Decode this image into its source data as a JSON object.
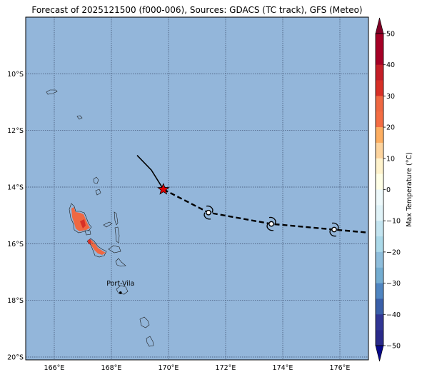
{
  "title": "Forecast of 2025121500 (f000-006), Sources: GDACS (TC track), GFS (Meteo)",
  "colors": {
    "ocean": "#93b6da",
    "grid": "#3a4a6a",
    "coast": "#1a1a1a",
    "hot": "#ef6842",
    "warmer": "#d73027",
    "track": "#000000",
    "current_marker": "#e00000"
  },
  "map": {
    "lon_range": [
      165,
      177
    ],
    "lat_range": [
      -20.1,
      -8.0
    ],
    "lon_ticks": [
      {
        "v": 166,
        "label": "166°E"
      },
      {
        "v": 168,
        "label": "168°E"
      },
      {
        "v": 170,
        "label": "170°E"
      },
      {
        "v": 172,
        "label": "172°E"
      },
      {
        "v": 174,
        "label": "174°E"
      },
      {
        "v": 176,
        "label": "176°E"
      }
    ],
    "lat_ticks": [
      {
        "v": -10,
        "label": "10°S"
      },
      {
        "v": -12,
        "label": "12°S"
      },
      {
        "v": -14,
        "label": "14°S"
      },
      {
        "v": -16,
        "label": "16°S"
      },
      {
        "v": -18,
        "label": "18°S"
      },
      {
        "v": -20,
        "label": "20°S"
      }
    ],
    "place_label": "Port-Vila",
    "place_point": {
      "lon": 168.32,
      "lat": -17.73
    }
  },
  "track": {
    "past": [
      [
        168.9,
        -12.88
      ],
      [
        169.4,
        -13.4
      ],
      [
        169.82,
        -14.08
      ]
    ],
    "current": [
      169.82,
      -14.08
    ],
    "forecast": [
      [
        169.82,
        -14.08
      ],
      [
        171.4,
        -14.9
      ],
      [
        173.6,
        -15.3
      ],
      [
        175.8,
        -15.5
      ],
      [
        176.9,
        -15.6
      ]
    ],
    "forecast_symbols": [
      [
        171.4,
        -14.9
      ],
      [
        173.6,
        -15.3
      ],
      [
        175.8,
        -15.5
      ]
    ]
  },
  "colorbar": {
    "label": "Max Temperature (°C)",
    "min": -50,
    "max": 50,
    "ticks": [
      "50",
      "40",
      "30",
      "20",
      "10",
      "0",
      "−10",
      "−20",
      "−30",
      "−40",
      "−50"
    ],
    "tick_values": [
      50,
      40,
      30,
      20,
      10,
      0,
      -10,
      -20,
      -30,
      -40,
      -50
    ],
    "bands": [
      {
        "from": 45,
        "to": 50,
        "color": "#a50026"
      },
      {
        "from": 40,
        "to": 45,
        "color": "#a50026"
      },
      {
        "from": 35,
        "to": 40,
        "color": "#c41e27"
      },
      {
        "from": 30,
        "to": 35,
        "color": "#d73027"
      },
      {
        "from": 25,
        "to": 30,
        "color": "#ef6842"
      },
      {
        "from": 20,
        "to": 25,
        "color": "#f46d43"
      },
      {
        "from": 15,
        "to": 20,
        "color": "#fdae61"
      },
      {
        "from": 10,
        "to": 15,
        "color": "#fdd49e"
      },
      {
        "from": 5,
        "to": 10,
        "color": "#fff3cc"
      },
      {
        "from": 0,
        "to": 5,
        "color": "#ffffe6"
      },
      {
        "from": -5,
        "to": 0,
        "color": "#eef9fb"
      },
      {
        "from": -10,
        "to": -5,
        "color": "#e0f3f8"
      },
      {
        "from": -15,
        "to": -10,
        "color": "#c3e4f0"
      },
      {
        "from": -20,
        "to": -15,
        "color": "#abd9e9"
      },
      {
        "from": -25,
        "to": -20,
        "color": "#8fbedc"
      },
      {
        "from": -30,
        "to": -25,
        "color": "#74add1"
      },
      {
        "from": -35,
        "to": -30,
        "color": "#4f85c1"
      },
      {
        "from": -40,
        "to": -35,
        "color": "#3a5fa9"
      },
      {
        "from": -45,
        "to": -40,
        "color": "#313695"
      },
      {
        "from": -50,
        "to": -45,
        "color": "#2a2a8a"
      }
    ],
    "extend_max_color": "#800026",
    "extend_min_color": "#08088a"
  }
}
